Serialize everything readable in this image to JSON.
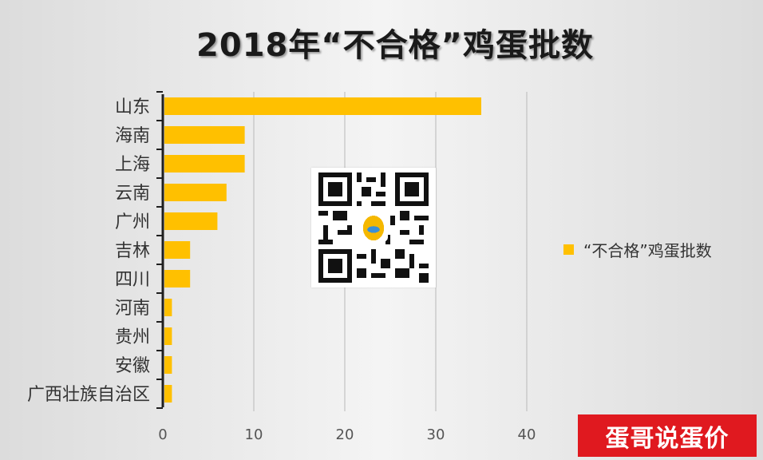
{
  "title": "2018年“不合格”鸡蛋批数",
  "colors": {
    "bar": "#ffc000",
    "gridline": "#b8b8b8",
    "axis": "#1f1f1f",
    "tick_text": "#555555",
    "category_text": "#333333"
  },
  "chart_data": {
    "type": "bar",
    "orientation": "horizontal",
    "title": "2018年“不合格”鸡蛋批数",
    "categories": [
      "山东",
      "海南",
      "上海",
      "云南",
      "广州",
      "吉林",
      "四川",
      "河南",
      "贵州",
      "安徽",
      "广西壮族自治区"
    ],
    "series": [
      {
        "name": "“不合格”鸡蛋批数",
        "values": [
          35,
          9,
          9,
          7,
          6,
          3,
          3,
          1,
          1,
          1,
          1
        ]
      }
    ],
    "xlim": [
      0,
      40
    ],
    "xticks": [
      0,
      10,
      20,
      30,
      40
    ],
    "xlabel": "",
    "ylabel": "",
    "grid": "vertical",
    "legend": "right"
  },
  "overlays": {
    "qr_icon": "qr-code",
    "watermark_text": "蛋哥说蛋价"
  }
}
